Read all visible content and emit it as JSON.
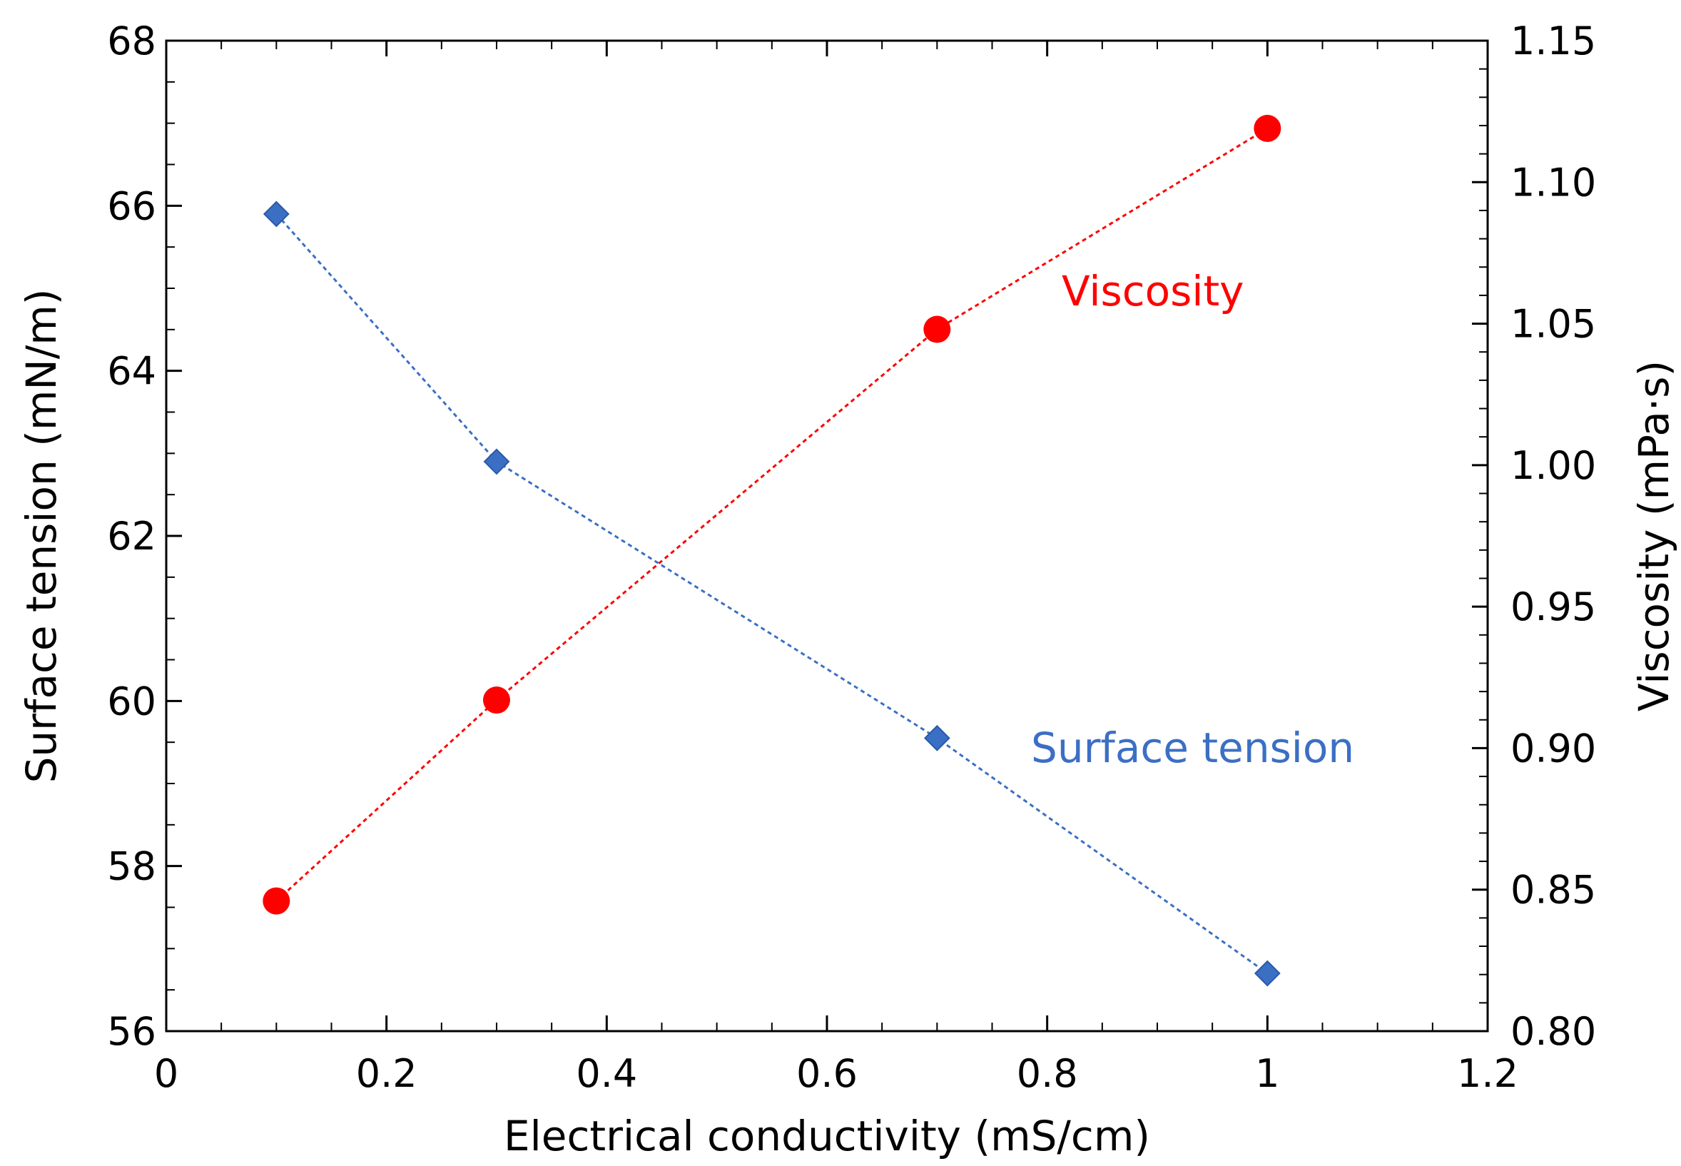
{
  "chart_data": {
    "type": "line",
    "xlabel": "Electrical conductivity (mS/cm)",
    "ylabel_left": "Surface tension (mN/m)",
    "ylabel_right": "Viscosity (mPa·s)",
    "xlim": [
      0,
      1.2
    ],
    "ylim_left": [
      56,
      68
    ],
    "ylim_right": [
      0.8,
      1.15
    ],
    "x_ticks": [
      "0",
      "0.2",
      "0.4",
      "0.6",
      "0.8",
      "1",
      "1.2"
    ],
    "y_left_ticks": [
      "56",
      "58",
      "60",
      "62",
      "64",
      "66",
      "68"
    ],
    "y_right_ticks": [
      "0.80",
      "0.85",
      "0.90",
      "0.95",
      "1.00",
      "1.05",
      "1.10",
      "1.15"
    ],
    "grid": false,
    "series": [
      {
        "name": "Surface tension",
        "axis": "left",
        "marker": "diamond",
        "line": "dotted",
        "color": "#3b6fc4",
        "x": [
          0.1,
          0.3,
          0.7,
          1.0
        ],
        "y": [
          65.9,
          62.9,
          59.55,
          56.7
        ]
      },
      {
        "name": "Viscosity",
        "axis": "right",
        "marker": "circle",
        "line": "dotted",
        "color": "#ff0000",
        "x": [
          0.1,
          0.3,
          0.7,
          1.0
        ],
        "y": [
          0.846,
          0.917,
          1.048,
          1.119
        ]
      }
    ]
  }
}
